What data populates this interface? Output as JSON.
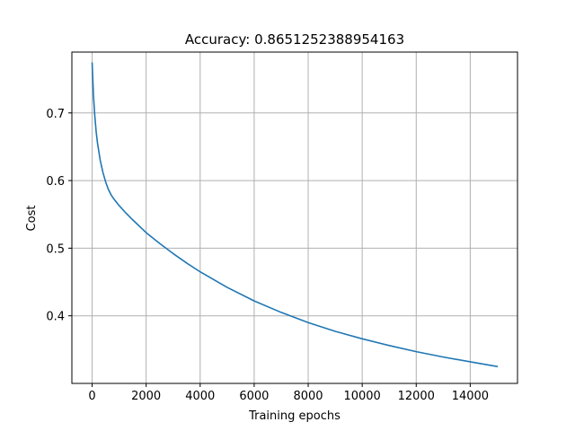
{
  "chart_data": {
    "type": "line",
    "title": "Accuracy: 0.8651252388954163",
    "xlabel": "Training epochs",
    "ylabel": "Cost",
    "xlim": [
      -750,
      15750
    ],
    "ylim": [
      0.3,
      0.79
    ],
    "xticks": [
      0,
      2000,
      4000,
      6000,
      8000,
      10000,
      12000,
      14000
    ],
    "yticks": [
      0.4,
      0.5,
      0.6,
      0.7
    ],
    "grid": true,
    "legend": "none",
    "series": [
      {
        "color": "#1f77b4",
        "x": [
          0,
          50,
          100,
          150,
          200,
          300,
          400,
          500,
          600,
          700,
          800,
          1000,
          1250,
          1500,
          2000,
          2500,
          3000,
          3500,
          4000,
          5000,
          6000,
          7000,
          8000,
          9000,
          10000,
          11000,
          12000,
          13000,
          14000,
          15000
        ],
        "y": [
          0.774,
          0.725,
          0.695,
          0.672,
          0.655,
          0.63,
          0.612,
          0.598,
          0.587,
          0.579,
          0.573,
          0.563,
          0.552,
          0.542,
          0.523,
          0.507,
          0.492,
          0.478,
          0.465,
          0.442,
          0.422,
          0.405,
          0.39,
          0.377,
          0.366,
          0.356,
          0.347,
          0.339,
          0.332,
          0.325
        ]
      }
    ]
  }
}
